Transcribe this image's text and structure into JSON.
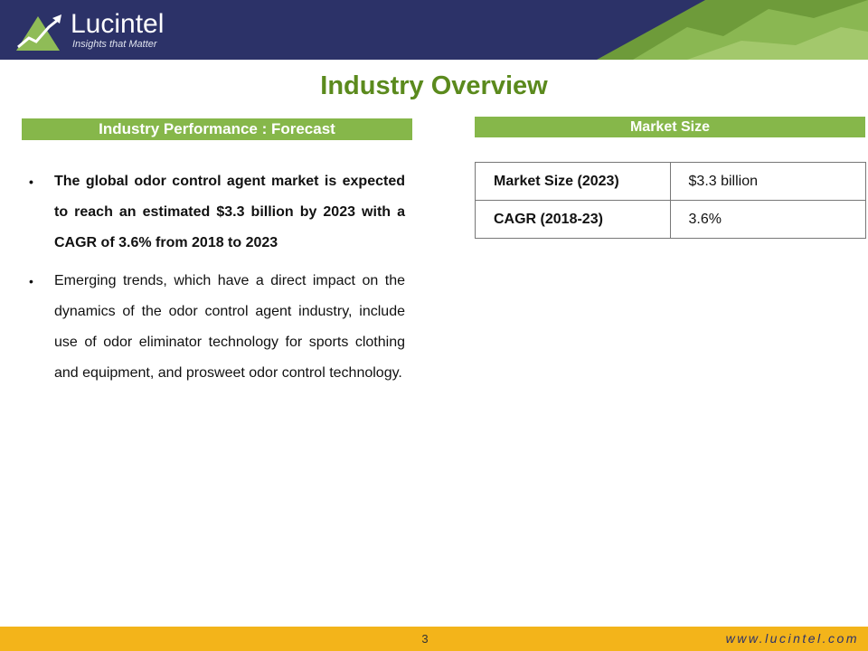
{
  "brand": {
    "name": "Lucintel",
    "tagline": "Insights that Matter"
  },
  "colors": {
    "header_navy": "#2c3268",
    "title_green": "#5b8a1d",
    "bar_green": "#86b74a",
    "footer_gold": "#f3b41a"
  },
  "page_title": "Industry Overview",
  "left_section": {
    "heading": "Industry Performance : Forecast",
    "bullets": [
      "The global odor control agent market is expected to reach an estimated $3.3 billion by 2023 with a CAGR of 3.6% from 2018 to 2023",
      "Emerging trends, which have a direct impact on the dynamics of the odor control agent industry, include use of odor eliminator technology for sports clothing and equipment, and prosweet odor control technology."
    ]
  },
  "right_section": {
    "heading": "Market Size",
    "rows": [
      {
        "label": "Market Size (2023)",
        "value": "$3.3 billion"
      },
      {
        "label": "CAGR (2018-23)",
        "value": "3.6%"
      }
    ]
  },
  "footer": {
    "page_number": "3",
    "url": "www.lucintel.com"
  }
}
